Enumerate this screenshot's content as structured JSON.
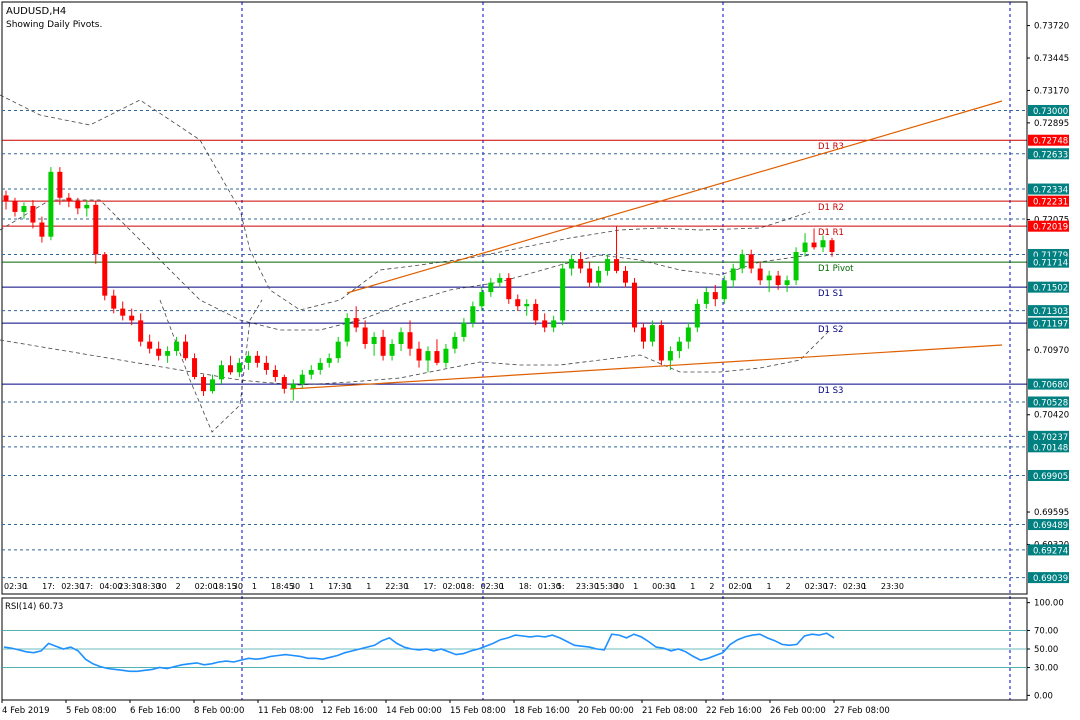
{
  "header": {
    "symbol": "AUDUSD,H4",
    "subtitle": "Showing Daily Pivots."
  },
  "colors": {
    "background": "#ffffff",
    "border": "#000000",
    "grid": "#0000cc",
    "bull": "#00cc00",
    "bear": "#ff0000",
    "resistance": "#cc0000",
    "pivot": "#006600",
    "support": "#000080",
    "trend": "#e06000",
    "rsi": "#1e90ff",
    "tag_teal": "#008080",
    "tag_red": "#ff0000"
  },
  "chart_data": [
    {
      "type": "candlestick",
      "timeframe": "H4",
      "ylim": [
        0.689,
        0.7392
      ],
      "y_ticks": [
        "0.73720",
        "0.73445",
        "0.73170",
        "0.72895",
        "0.72075",
        "0.70970",
        "0.70420",
        "0.69595",
        "0.69320"
      ],
      "pivot_levels": [
        {
          "name": "D1 R3",
          "value": 0.72748,
          "kind": "resistance"
        },
        {
          "name": "D1 R2",
          "value": 0.72231,
          "kind": "resistance"
        },
        {
          "name": "D1 R1",
          "value": 0.72019,
          "kind": "resistance"
        },
        {
          "name": "D1 Pivot",
          "value": 0.71714,
          "kind": "pivot"
        },
        {
          "name": "D1 S1",
          "value": 0.71502,
          "kind": "support"
        },
        {
          "name": "D1 S2",
          "value": 0.71197,
          "kind": "support"
        },
        {
          "name": "D1 S3",
          "value": 0.7068,
          "kind": "support"
        }
      ],
      "price_tags": [
        {
          "label": "0.73000",
          "value": 0.73,
          "style": "teal"
        },
        {
          "label": "0.72748",
          "value": 0.72748,
          "style": "red"
        },
        {
          "label": "0.72633",
          "value": 0.72633,
          "style": "teal"
        },
        {
          "label": "0.72334",
          "value": 0.72334,
          "style": "teal"
        },
        {
          "label": "0.72231",
          "value": 0.72231,
          "style": "red"
        },
        {
          "label": "0.72019",
          "value": 0.72019,
          "style": "red"
        },
        {
          "label": "0.71779",
          "value": 0.71779,
          "style": "teal"
        },
        {
          "label": "0.71714",
          "value": 0.71714,
          "style": "teal"
        },
        {
          "label": "0.71502",
          "value": 0.71502,
          "style": "teal"
        },
        {
          "label": "0.71303",
          "value": 0.71303,
          "style": "teal"
        },
        {
          "label": "0.71197",
          "value": 0.71197,
          "style": "teal"
        },
        {
          "label": "0.70680",
          "value": 0.7068,
          "style": "teal"
        },
        {
          "label": "0.70528",
          "value": 0.70528,
          "style": "teal"
        },
        {
          "label": "0.70237",
          "value": 0.70237,
          "style": "teal"
        },
        {
          "label": "0.70148",
          "value": 0.70148,
          "style": "teal"
        },
        {
          "label": "0.69905",
          "value": 0.69905,
          "style": "teal"
        },
        {
          "label": "0.69489",
          "value": 0.69489,
          "style": "teal"
        },
        {
          "label": "0.69274",
          "value": 0.69274,
          "style": "teal"
        },
        {
          "label": "0.69039",
          "value": 0.69039,
          "style": "teal"
        }
      ],
      "horizontal_levels": [
        0.73,
        0.72633,
        0.72334,
        0.7208,
        0.71779,
        0.71303,
        0.70528,
        0.70237,
        0.70148,
        0.69905,
        0.69489,
        0.69274,
        0.69039
      ],
      "x_dates": [
        "4 Feb 2019",
        "5 Feb 08:00",
        "6 Feb 16:00",
        "8 Feb 00:00",
        "11 Feb 08:00",
        "12 Feb 16:00",
        "14 Feb 00:00",
        "15 Feb 08:00",
        "18 Feb 16:00",
        "20 Feb 00:00",
        "21 Feb 08:00",
        "22 Feb 16:00",
        "26 Feb 00:00",
        "27 Feb 08:00"
      ],
      "session_labels": [
        "02:30",
        "1",
        "17:",
        "02:30",
        "17:",
        "04:00",
        "23:30",
        "18:30",
        "30",
        "2",
        "02:00",
        "18:15",
        "30",
        "1",
        "18:45",
        "30",
        "1",
        "17:30",
        "1",
        "1",
        "22:30",
        "1",
        "17:",
        "02:00",
        "18:",
        "02:30",
        "1",
        "18:",
        "01:30",
        "5:",
        "23:30",
        "15:30",
        "30",
        "1",
        "00:30",
        "1",
        "1",
        "2",
        "02:00",
        "1",
        "1",
        "2",
        "02:30",
        "17:",
        "02:30",
        "1",
        "23:30"
      ],
      "candles": [
        [
          0.7228,
          0.7232,
          0.7216,
          0.7223
        ],
        [
          0.7223,
          0.7226,
          0.721,
          0.7214
        ],
        [
          0.7214,
          0.7222,
          0.7208,
          0.7219
        ],
        [
          0.7219,
          0.7224,
          0.72,
          0.7205
        ],
        [
          0.7205,
          0.721,
          0.7188,
          0.7193
        ],
        [
          0.7193,
          0.7252,
          0.719,
          0.7248
        ],
        [
          0.7248,
          0.7252,
          0.722,
          0.7226
        ],
        [
          0.7226,
          0.723,
          0.7218,
          0.7223
        ],
        [
          0.7223,
          0.7226,
          0.7212,
          0.7217
        ],
        [
          0.7217,
          0.7224,
          0.721,
          0.722
        ],
        [
          0.722,
          0.7223,
          0.717,
          0.7178
        ],
        [
          0.7178,
          0.718,
          0.7139,
          0.7143
        ],
        [
          0.7143,
          0.7148,
          0.7128,
          0.7132
        ],
        [
          0.7132,
          0.7138,
          0.7122,
          0.7126
        ],
        [
          0.7126,
          0.7132,
          0.7118,
          0.7122
        ],
        [
          0.7122,
          0.7128,
          0.71,
          0.7104
        ],
        [
          0.7104,
          0.711,
          0.7094,
          0.7098
        ],
        [
          0.7098,
          0.7104,
          0.7088,
          0.7092
        ],
        [
          0.7092,
          0.71,
          0.7086,
          0.7096
        ],
        [
          0.7096,
          0.7108,
          0.7092,
          0.7104
        ],
        [
          0.7104,
          0.711,
          0.7088,
          0.709
        ],
        [
          0.709,
          0.7094,
          0.7072,
          0.7074
        ],
        [
          0.7074,
          0.7076,
          0.7058,
          0.7062
        ],
        [
          0.7062,
          0.7076,
          0.706,
          0.7072
        ],
        [
          0.7072,
          0.7088,
          0.7068,
          0.7084
        ],
        [
          0.7084,
          0.7092,
          0.7076,
          0.7078
        ],
        [
          0.7078,
          0.709,
          0.7074,
          0.7086
        ],
        [
          0.7086,
          0.7096,
          0.708,
          0.7092
        ],
        [
          0.7092,
          0.7096,
          0.7082,
          0.7086
        ],
        [
          0.7086,
          0.7092,
          0.7076,
          0.708
        ],
        [
          0.708,
          0.7084,
          0.707,
          0.7074
        ],
        [
          0.7074,
          0.7076,
          0.706,
          0.7064
        ],
        [
          0.7064,
          0.7072,
          0.7054,
          0.7068
        ],
        [
          0.7068,
          0.708,
          0.7064,
          0.7076
        ],
        [
          0.7076,
          0.7084,
          0.7072,
          0.708
        ],
        [
          0.708,
          0.709,
          0.7076,
          0.7086
        ],
        [
          0.7086,
          0.7094,
          0.7082,
          0.709
        ],
        [
          0.709,
          0.7108,
          0.7086,
          0.7104
        ],
        [
          0.7104,
          0.7128,
          0.71,
          0.7124
        ],
        [
          0.7124,
          0.7134,
          0.7112,
          0.7116
        ],
        [
          0.7116,
          0.7122,
          0.7098,
          0.7102
        ],
        [
          0.7102,
          0.7112,
          0.7092,
          0.7108
        ],
        [
          0.7108,
          0.7114,
          0.7088,
          0.7092
        ],
        [
          0.7092,
          0.7106,
          0.7088,
          0.7102
        ],
        [
          0.7102,
          0.7116,
          0.7096,
          0.7112
        ],
        [
          0.7112,
          0.7122,
          0.7092,
          0.7098
        ],
        [
          0.7098,
          0.7104,
          0.7082,
          0.7088
        ],
        [
          0.7088,
          0.71,
          0.7078,
          0.7096
        ],
        [
          0.7096,
          0.7106,
          0.7084,
          0.7086
        ],
        [
          0.7086,
          0.7102,
          0.7082,
          0.7098
        ],
        [
          0.7098,
          0.7112,
          0.7094,
          0.7108
        ],
        [
          0.7108,
          0.7124,
          0.7104,
          0.712
        ],
        [
          0.712,
          0.7138,
          0.7116,
          0.7134
        ],
        [
          0.7134,
          0.715,
          0.713,
          0.7146
        ],
        [
          0.7146,
          0.7158,
          0.7142,
          0.7154
        ],
        [
          0.7154,
          0.7162,
          0.715,
          0.7158
        ],
        [
          0.7158,
          0.7162,
          0.7136,
          0.714
        ],
        [
          0.714,
          0.7144,
          0.713,
          0.7134
        ],
        [
          0.7134,
          0.714,
          0.7126,
          0.7136
        ],
        [
          0.7136,
          0.714,
          0.7118,
          0.7122
        ],
        [
          0.7122,
          0.7128,
          0.7112,
          0.7116
        ],
        [
          0.7116,
          0.7126,
          0.7112,
          0.7122
        ],
        [
          0.7122,
          0.717,
          0.7118,
          0.7166
        ],
        [
          0.7166,
          0.7178,
          0.716,
          0.7174
        ],
        [
          0.7174,
          0.718,
          0.7162,
          0.7166
        ],
        [
          0.7166,
          0.7172,
          0.715,
          0.7154
        ],
        [
          0.7154,
          0.7168,
          0.715,
          0.7164
        ],
        [
          0.7164,
          0.7178,
          0.716,
          0.7174
        ],
        [
          0.7174,
          0.7202,
          0.7162,
          0.7164
        ],
        [
          0.7164,
          0.7168,
          0.715,
          0.7154
        ],
        [
          0.7154,
          0.7158,
          0.7112,
          0.7116
        ],
        [
          0.7116,
          0.712,
          0.7098,
          0.7104
        ],
        [
          0.7104,
          0.7122,
          0.71,
          0.7118
        ],
        [
          0.7118,
          0.7122,
          0.7084,
          0.7088
        ],
        [
          0.7088,
          0.71,
          0.708,
          0.7096
        ],
        [
          0.7096,
          0.7108,
          0.709,
          0.7104
        ],
        [
          0.7104,
          0.712,
          0.7098,
          0.7116
        ],
        [
          0.7116,
          0.714,
          0.7112,
          0.7136
        ],
        [
          0.7136,
          0.715,
          0.7132,
          0.7146
        ],
        [
          0.7146,
          0.7152,
          0.7134,
          0.714
        ],
        [
          0.714,
          0.716,
          0.7136,
          0.7156
        ],
        [
          0.7156,
          0.717,
          0.715,
          0.7166
        ],
        [
          0.7166,
          0.7182,
          0.7162,
          0.7178
        ],
        [
          0.7178,
          0.7182,
          0.7162,
          0.7166
        ],
        [
          0.7166,
          0.7172,
          0.7152,
          0.7156
        ],
        [
          0.7156,
          0.7164,
          0.7146,
          0.716
        ],
        [
          0.716,
          0.7164,
          0.7148,
          0.7152
        ],
        [
          0.7152,
          0.716,
          0.7146,
          0.7156
        ],
        [
          0.7156,
          0.7184,
          0.7152,
          0.718
        ],
        [
          0.718,
          0.7196,
          0.7176,
          0.7188
        ],
        [
          0.7188,
          0.72,
          0.7182,
          0.7184
        ],
        [
          0.7184,
          0.7194,
          0.718,
          0.719
        ],
        [
          0.719,
          0.7192,
          0.7176,
          0.718
        ]
      ]
    },
    {
      "type": "line",
      "title": "RSI(14) 60.73",
      "ylim": [
        -5,
        105
      ],
      "y_ticks": [
        100,
        70,
        50,
        30,
        0
      ],
      "y_tick_labels": [
        "100.00",
        "70.00",
        "50.00",
        "30.00",
        "0.00"
      ],
      "levels": [
        70,
        50,
        30
      ],
      "series": [
        {
          "values": [
            52,
            51,
            49,
            47,
            46,
            48,
            56,
            53,
            50,
            52,
            48,
            39,
            34,
            31,
            29,
            28,
            27,
            26,
            26,
            27,
            28,
            30,
            29,
            31,
            33,
            34,
            35,
            33,
            34,
            36,
            37,
            36,
            38,
            40,
            39,
            40,
            42,
            43,
            44,
            43,
            42,
            40,
            40,
            39,
            41,
            43,
            46,
            48,
            50,
            52,
            54,
            59,
            62,
            56,
            52,
            50,
            49,
            50,
            48,
            50,
            47,
            44,
            45,
            48,
            50,
            53,
            56,
            60,
            62,
            65,
            64,
            63,
            64,
            63,
            65,
            62,
            58,
            54,
            53,
            52,
            50,
            49,
            66,
            65,
            62,
            66,
            63,
            58,
            52,
            51,
            48,
            50,
            47,
            42,
            38,
            40,
            43,
            46,
            55,
            60,
            63,
            65,
            66,
            62,
            59,
            55,
            54,
            55,
            64,
            66,
            65,
            67,
            62
          ]
        }
      ]
    }
  ]
}
